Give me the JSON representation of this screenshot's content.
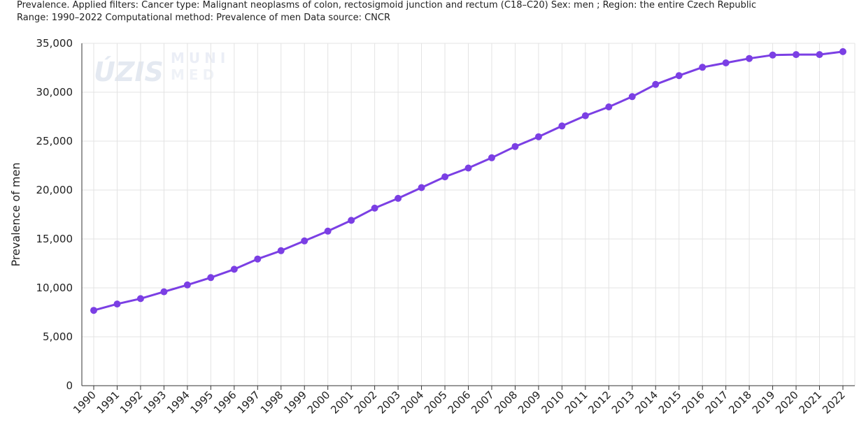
{
  "subtitle": {
    "line1": "Prevalence. Applied filters: Cancer type: Malignant neoplasms of colon, rectosigmoid junction and rectum (C18–C20) Sex: men ; Region: the entire Czech Republic",
    "line2": "Range: 1990–2022 Computational method: Prevalence of men Data source: CNCR"
  },
  "watermark": {
    "logo1": "ÚZIS",
    "logo2_line1": "MUNI",
    "logo2_line2": "MED"
  },
  "chart_data": {
    "type": "line",
    "title": "",
    "xlabel": "",
    "ylabel": "Prevalence of men",
    "ylim": [
      0,
      35000
    ],
    "yticks": [
      0,
      5000,
      10000,
      15000,
      20000,
      25000,
      30000,
      35000
    ],
    "ytick_labels": [
      "0",
      "5,000",
      "10,000",
      "15,000",
      "20,000",
      "25,000",
      "30,000",
      "35,000"
    ],
    "grid": true,
    "color": "#7b3fe4",
    "x": [
      "1990",
      "1991",
      "1992",
      "1993",
      "1994",
      "1995",
      "1996",
      "1997",
      "1998",
      "1999",
      "2000",
      "2001",
      "2002",
      "2003",
      "2004",
      "2005",
      "2006",
      "2007",
      "2008",
      "2009",
      "2010",
      "2011",
      "2012",
      "2013",
      "2014",
      "2015",
      "2016",
      "2017",
      "2018",
      "2019",
      "2020",
      "2021",
      "2022"
    ],
    "values": [
      7700,
      8350,
      8900,
      9600,
      10300,
      11050,
      11900,
      12950,
      13800,
      14800,
      15800,
      16900,
      18150,
      19150,
      20250,
      21350,
      22250,
      23300,
      24450,
      25450,
      26550,
      27600,
      28500,
      29550,
      30800,
      31700,
      32550,
      33000,
      33450,
      33800,
      33850,
      33850,
      34150
    ]
  }
}
